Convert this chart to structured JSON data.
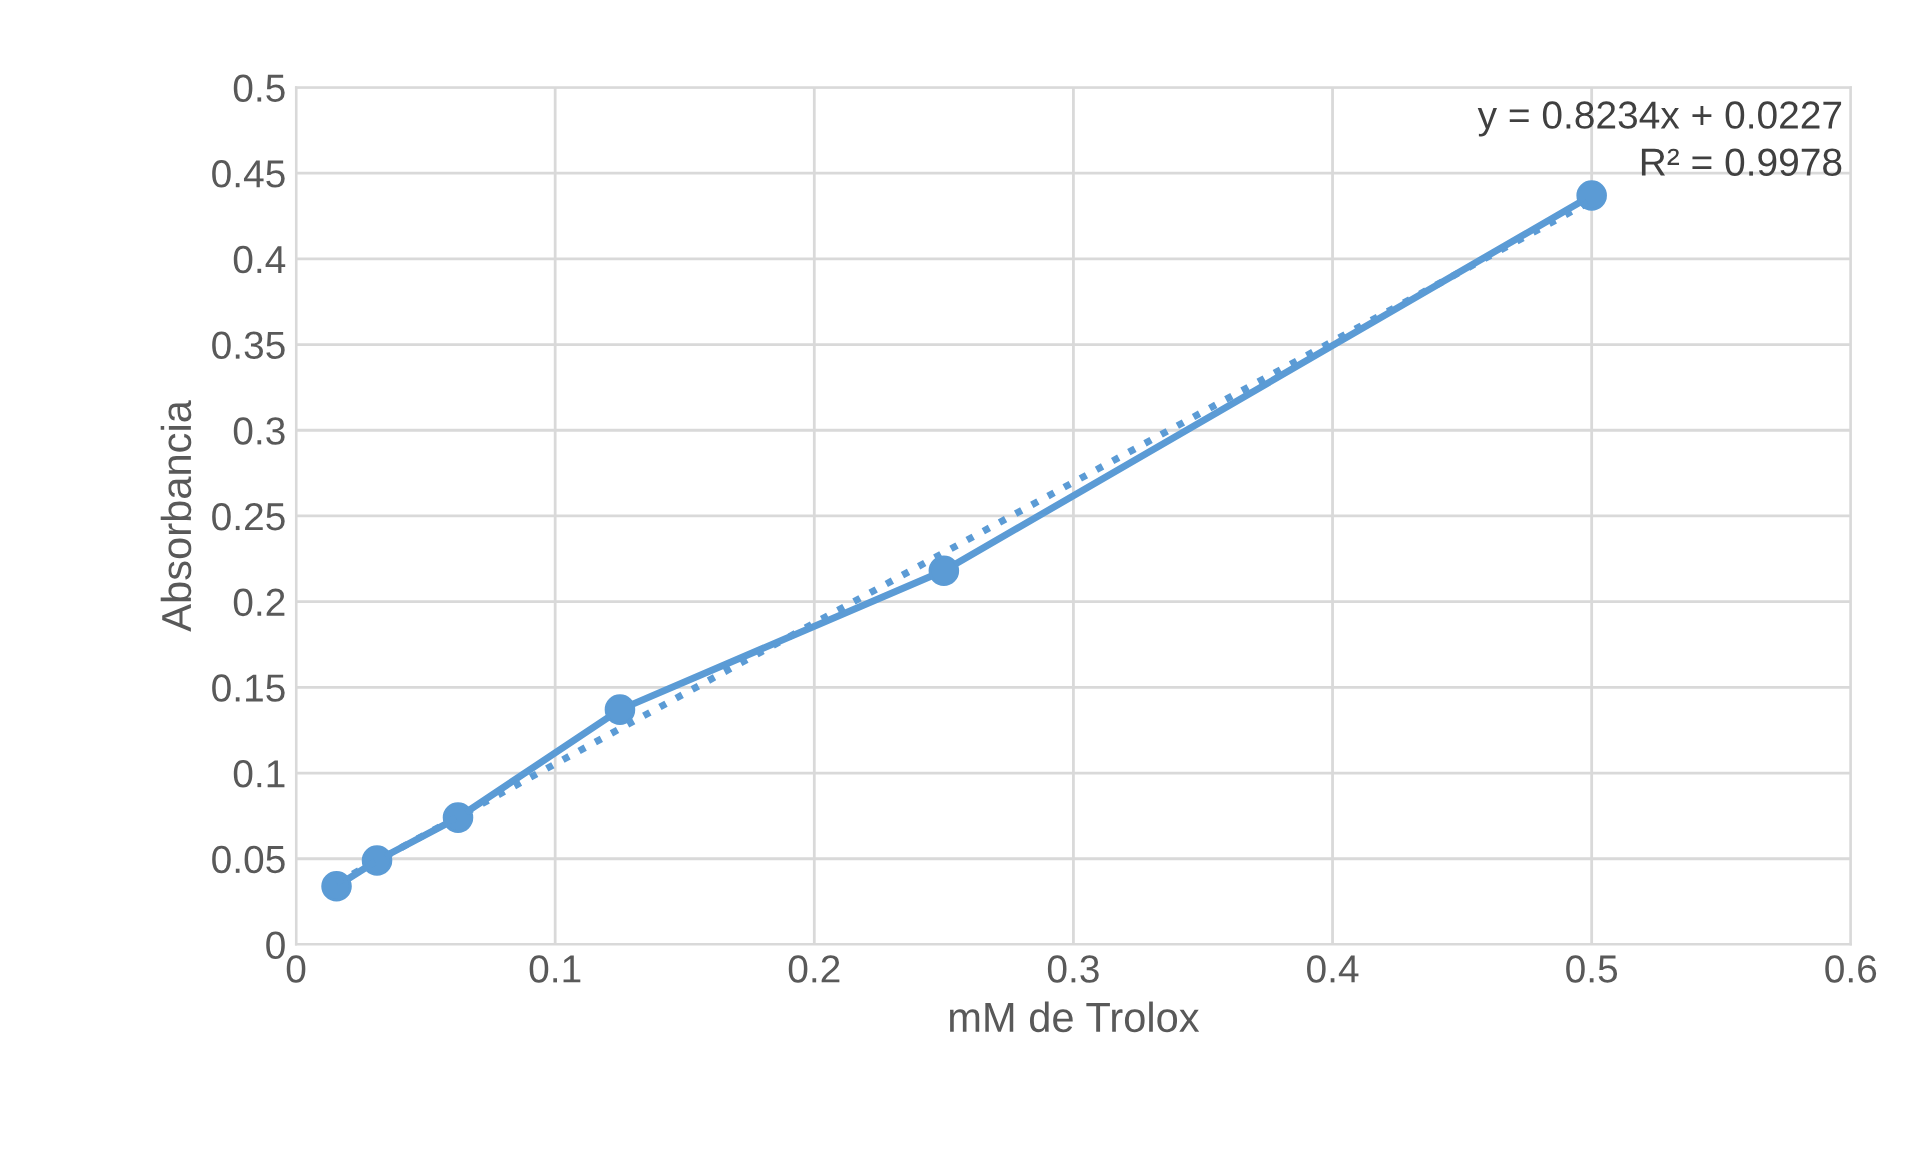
{
  "chart_data": {
    "type": "line",
    "xlabel": "mM de Trolox",
    "ylabel": "Absorbancia",
    "x": [
      0.015625,
      0.03125,
      0.0625,
      0.125,
      0.25,
      0.5
    ],
    "series": [
      {
        "color": "#5b9bd5",
        "marker": "circle",
        "line_style": "solid",
        "values": [
          0.034,
          0.049,
          0.074,
          0.137,
          0.218,
          0.437
        ]
      },
      {
        "color": "#5b9bd5",
        "marker": "none",
        "line_style": "dotted",
        "x": [
          0.015625,
          0.5
        ],
        "values": [
          0.036,
          0.434
        ]
      }
    ],
    "annotations": [
      "y = 0.8234x + 0.0227",
      "R² = 0.9978"
    ],
    "xlim": [
      0,
      0.6
    ],
    "xticks": [
      0,
      0.1,
      0.2,
      0.3,
      0.4,
      0.5,
      0.6
    ],
    "ylim": [
      0,
      0.5
    ],
    "yticks": [
      0,
      0.05,
      0.1,
      0.15,
      0.2,
      0.25,
      0.3,
      0.35,
      0.4,
      0.45,
      0.5
    ],
    "grid": true,
    "legend": false
  }
}
